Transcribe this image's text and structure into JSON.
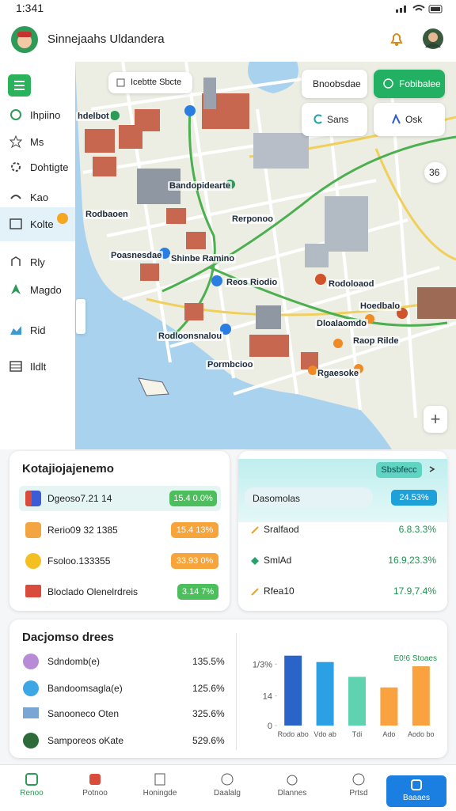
{
  "status_bar": {
    "time": "1:341"
  },
  "header": {
    "title": "Sinnejaahs Uldandera"
  },
  "sidebar": {
    "items": [
      "Ihpiino",
      "Ms",
      "Dohtigte",
      "Kao",
      "Kolte",
      "Rly",
      "Magdo",
      "Rid",
      "Ildlt"
    ]
  },
  "map": {
    "search": "Icebtte Sbcte",
    "buttons": [
      "Bnoobsdae",
      "Fobibalee",
      "Sans",
      "Osk"
    ],
    "badge": "36",
    "labels": [
      "hdelbot",
      "Bandopidearte",
      "Rodbaoen",
      "Rerponoo",
      "Poasnesdae",
      "Shinbe Ramino",
      "Reos Riodio",
      "Rodoloaod",
      "Hoedbalo",
      "Dloalaomdo",
      "Rodloonsnalou",
      "Raop Rilde",
      "Pormbcioo",
      "Rgaesoke"
    ]
  },
  "card_left": {
    "title": "Kotajiojajenemo",
    "rows": [
      {
        "label": "Dgeoso7.21 14",
        "value": "15.4 0.0%"
      },
      {
        "label": "Rerio09 32 1385",
        "value": "15.4 13%"
      },
      {
        "label": "Fsoloo.133355",
        "value": "33.93 0%"
      },
      {
        "label": "Bloclado Olenelrdreis",
        "value": "3.14 7%"
      }
    ]
  },
  "card_right": {
    "header": "Sbsbfecc",
    "rows": [
      {
        "label": "Dasomolas",
        "value": "24.53%"
      },
      {
        "label": "Sralfaod",
        "value": "6.8.3.3%"
      },
      {
        "label": "SmlAd",
        "value": "16.9,23.3%"
      },
      {
        "label": "Rfea10",
        "value": "17.9,7.4%"
      }
    ]
  },
  "card_bottom": {
    "title": "Dacjomso drees",
    "rows": [
      {
        "label": "Sdndomb(e)",
        "value": "135.5%"
      },
      {
        "label": "Bandoomsagla(e)",
        "value": "125.6%"
      },
      {
        "label": "Sanooneco Oten",
        "value": "325.6%"
      },
      {
        "label": "Samporeos oKate",
        "value": "529.6%"
      }
    ],
    "chart": {
      "type": "bar",
      "legend": "E0!6 Stoaes",
      "categories": [
        "Rodo abo",
        "Vdo ab",
        "Tdi",
        "Ado",
        "Aodo bo"
      ],
      "values": [
        33,
        30,
        23,
        18,
        28
      ],
      "colors": [
        "#2a64c9",
        "#2ba0e4",
        "#5fd3b0",
        "#f9a23f",
        "#f9a23f"
      ],
      "ylim": [
        0,
        34
      ],
      "yticks": [
        0,
        14,
        {
          "value": 29,
          "label": "1/3%"
        }
      ]
    }
  },
  "nav": {
    "items": [
      "Renoo",
      "Potnoo",
      "Honingde",
      "Daalalg",
      "Dlannes",
      "Prtsd",
      "Baaaes"
    ]
  }
}
